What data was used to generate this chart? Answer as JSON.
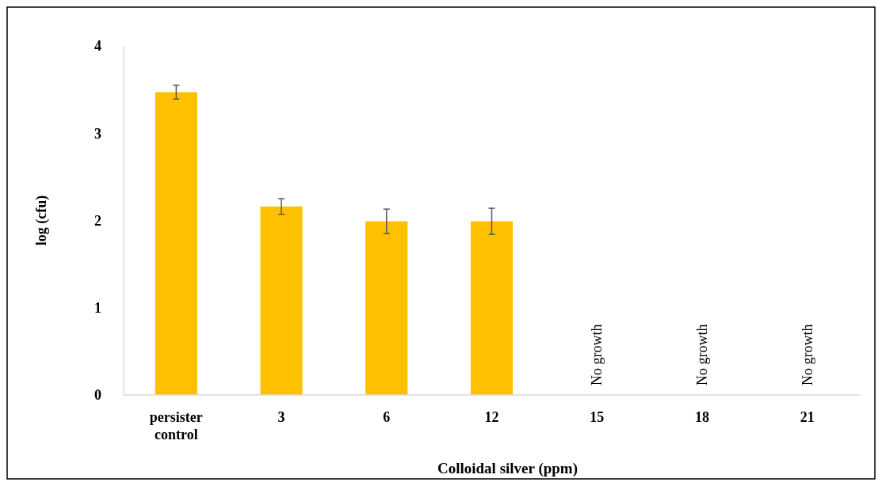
{
  "chart_data": {
    "type": "bar",
    "xlabel": "Colloidal silver (ppm)",
    "ylabel": "log (cfu)",
    "categories": [
      "persister control",
      "3",
      "6",
      "12",
      "15",
      "18",
      "21"
    ],
    "values": [
      3.47,
      2.16,
      1.99,
      1.99,
      null,
      null,
      null
    ],
    "errors": [
      0.08,
      0.09,
      0.14,
      0.15,
      null,
      null,
      null
    ],
    "color": "#ffc000",
    "ylim": [
      0,
      4
    ],
    "yticks": [
      0,
      1,
      2,
      3,
      4
    ],
    "grid": false,
    "annotations": [
      "No growth",
      "No growth",
      "No growth"
    ]
  }
}
